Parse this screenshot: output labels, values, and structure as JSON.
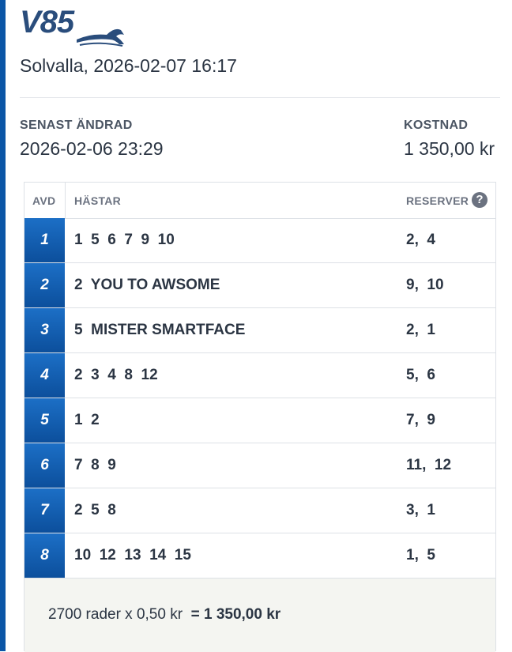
{
  "header": {
    "logo_text": "V85",
    "subtitle": "Solvalla, 2026-02-07 16:17"
  },
  "meta": {
    "changed_label": "SENAST ÄNDRAD",
    "changed_value": "2026-02-06 23:29",
    "cost_label": "KOSTNAD",
    "cost_value": "1 350,00 kr"
  },
  "table": {
    "col_avd": "AVD",
    "col_horses": "HÄSTAR",
    "col_reserves": "RESERVER",
    "help_icon": "?",
    "rows": [
      {
        "avd": "1",
        "horses": "1  5  6  7  9  10",
        "reserves": "2,  4"
      },
      {
        "avd": "2",
        "horses": "2  YOU TO AWSOME",
        "reserves": "9,  10"
      },
      {
        "avd": "3",
        "horses": "5  MISTER SMARTFACE",
        "reserves": "2,  1"
      },
      {
        "avd": "4",
        "horses": "2  3  4  8  12",
        "reserves": "5,  6"
      },
      {
        "avd": "5",
        "horses": "1  2",
        "reserves": "7,  9"
      },
      {
        "avd": "6",
        "horses": "7  8  9",
        "reserves": "11,  12"
      },
      {
        "avd": "7",
        "horses": "2  5  8",
        "reserves": "3,  1"
      },
      {
        "avd": "8",
        "horses": "10  12  13  14  15",
        "reserves": "1,  5"
      }
    ]
  },
  "footer": {
    "calc": "2700 rader x 0,50 kr  ",
    "total": "= 1 350,00 kr"
  },
  "colors": {
    "accent": "#0b56a6",
    "brand": "#2a4d7c"
  }
}
